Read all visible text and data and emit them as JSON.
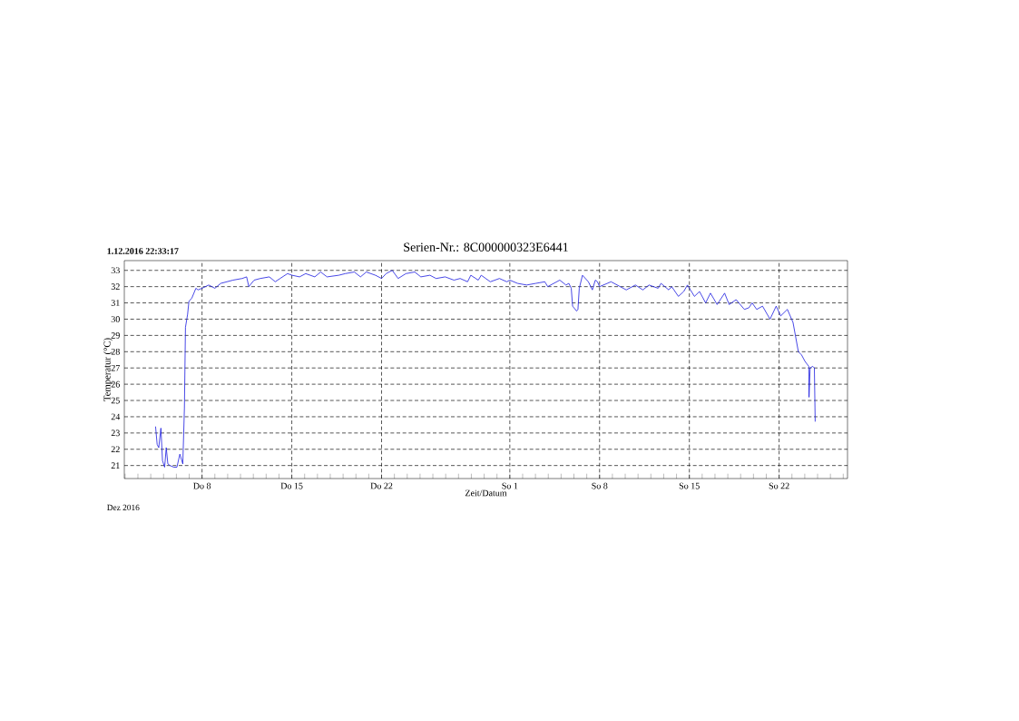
{
  "chart_data": {
    "type": "line",
    "title": "Serien-Nr.: 8C000000323E6441",
    "annotations": [
      "1.12.2016 22:33:17",
      "Dez 2016"
    ],
    "xlabel": "Zeit/Datum",
    "ylabel": "Temperatur (°C)",
    "color": "#1a1ae0",
    "grid": true,
    "xlim": [
      "2016-12-01T22:33",
      "2017-01-27T08:00"
    ],
    "ylim": [
      20.2,
      33.6
    ],
    "yticks": [
      21,
      22,
      23,
      24,
      25,
      26,
      27,
      28,
      29,
      30,
      31,
      32,
      33
    ],
    "xticks": [
      {
        "value": "2016-12-02",
        "label": null
      },
      {
        "value": "2016-12-03",
        "label": null
      },
      {
        "value": "2016-12-04",
        "label": null
      },
      {
        "value": "2016-12-05",
        "label": null
      },
      {
        "value": "2016-12-06",
        "label": null
      },
      {
        "value": "2016-12-07",
        "label": null
      },
      {
        "value": "2016-12-08",
        "label": "Do 8"
      },
      {
        "value": "2016-12-09",
        "label": null
      },
      {
        "value": "2016-12-10",
        "label": null
      },
      {
        "value": "2016-12-11",
        "label": null
      },
      {
        "value": "2016-12-12",
        "label": null
      },
      {
        "value": "2016-12-13",
        "label": null
      },
      {
        "value": "2016-12-14",
        "label": null
      },
      {
        "value": "2016-12-15",
        "label": "Do 15"
      },
      {
        "value": "2016-12-16",
        "label": null
      },
      {
        "value": "2016-12-17",
        "label": null
      },
      {
        "value": "2016-12-18",
        "label": null
      },
      {
        "value": "2016-12-19",
        "label": null
      },
      {
        "value": "2016-12-20",
        "label": null
      },
      {
        "value": "2016-12-21",
        "label": null
      },
      {
        "value": "2016-12-22",
        "label": "Do 22"
      },
      {
        "value": "2016-12-23",
        "label": null
      },
      {
        "value": "2016-12-24",
        "label": null
      },
      {
        "value": "2016-12-25",
        "label": null
      },
      {
        "value": "2016-12-26",
        "label": null
      },
      {
        "value": "2016-12-27",
        "label": null
      },
      {
        "value": "2016-12-28",
        "label": null
      },
      {
        "value": "2016-12-29",
        "label": null
      },
      {
        "value": "2016-12-30",
        "label": null
      },
      {
        "value": "2016-12-31",
        "label": null
      },
      {
        "value": "2017-01-01",
        "label": "So 1"
      },
      {
        "value": "2017-01-02",
        "label": null
      },
      {
        "value": "2017-01-03",
        "label": null
      },
      {
        "value": "2017-01-04",
        "label": null
      },
      {
        "value": "2017-01-05",
        "label": null
      },
      {
        "value": "2017-01-06",
        "label": null
      },
      {
        "value": "2017-01-07",
        "label": null
      },
      {
        "value": "2017-01-08",
        "label": "So 8"
      },
      {
        "value": "2017-01-09",
        "label": null
      },
      {
        "value": "2017-01-10",
        "label": null
      },
      {
        "value": "2017-01-11",
        "label": null
      },
      {
        "value": "2017-01-12",
        "label": null
      },
      {
        "value": "2017-01-13",
        "label": null
      },
      {
        "value": "2017-01-14",
        "label": null
      },
      {
        "value": "2017-01-15",
        "label": "So 15"
      },
      {
        "value": "2017-01-16",
        "label": null
      },
      {
        "value": "2017-01-17",
        "label": null
      },
      {
        "value": "2017-01-18",
        "label": null
      },
      {
        "value": "2017-01-19",
        "label": null
      },
      {
        "value": "2017-01-20",
        "label": null
      },
      {
        "value": "2017-01-21",
        "label": null
      },
      {
        "value": "2017-01-22",
        "label": "So 22"
      },
      {
        "value": "2017-01-23",
        "label": null
      },
      {
        "value": "2017-01-24",
        "label": null
      },
      {
        "value": "2017-01-25",
        "label": null
      },
      {
        "value": "2017-01-26",
        "label": null
      },
      {
        "value": "2017-01-27",
        "label": null
      }
    ],
    "x": [
      "2016-12-04T09:00",
      "2016-12-04T12:00",
      "2016-12-04T15:00",
      "2016-12-04T19:00",
      "2016-12-04T22:00",
      "2016-12-05T02:00",
      "2016-12-05T05:00",
      "2016-12-05T08:00",
      "2016-12-05T12:00",
      "2016-12-05T19:00",
      "2016-12-06T01:00",
      "2016-12-06T06:30",
      "2016-12-06T12:00",
      "2016-12-06T15:00",
      "2016-12-06T17:00",
      "2016-12-06T21:00",
      "2016-12-06T23:30",
      "2016-12-07T05:00",
      "2016-12-07T12:30",
      "2016-12-07T16:30",
      "2016-12-08T00:00",
      "2016-12-08T12:30",
      "2016-12-09T00:00",
      "2016-12-09T11:00",
      "2016-12-09T22:30",
      "2016-12-10T10:00",
      "2016-12-11T03:00",
      "2016-12-11T11:30",
      "2016-12-11T15:30",
      "2016-12-12T01:30",
      "2016-12-12T13:00",
      "2016-12-13T06:00",
      "2016-12-13T17:00",
      "2016-12-14T02:00",
      "2016-12-14T16:00",
      "2016-12-15T00:30",
      "2016-12-15T14:30",
      "2016-12-16T02:00",
      "2016-12-16T19:00",
      "2016-12-17T06:00",
      "2016-12-17T18:00",
      "2016-12-18T16:00",
      "2016-12-19T04:00",
      "2016-12-19T21:00",
      "2016-12-20T08:30",
      "2016-12-20T19:30",
      "2016-12-21T12:30",
      "2016-12-22T00:00",
      "2016-12-22T08:30",
      "2016-12-22T20:00",
      "2016-12-23T07:00",
      "2016-12-23T21:30",
      "2016-12-24T14:00",
      "2016-12-25T01:30",
      "2016-12-25T18:30",
      "2016-12-26T06:00",
      "2016-12-26T23:00",
      "2016-12-27T15:30",
      "2016-12-28T03:00",
      "2016-12-28T17:00",
      "2016-12-28T23:00",
      "2016-12-29T13:00",
      "2016-12-29T18:30",
      "2016-12-30T11:30",
      "2016-12-31T04:30",
      "2016-12-31T18:30",
      "2017-01-01T00:00",
      "2017-01-01T14:30",
      "2017-01-02T07:30",
      "2017-01-03T00:30",
      "2017-01-03T17:30",
      "2017-01-03T23:00",
      "2017-01-04T21:30",
      "2017-01-05T09:00",
      "2017-01-05T14:30",
      "2017-01-05T19:00",
      "2017-01-05T21:30",
      "2017-01-06T05:00",
      "2017-01-06T07:30",
      "2017-01-06T10:00",
      "2017-01-06T16:00",
      "2017-01-07T03:00",
      "2017-01-07T10:30",
      "2017-01-07T16:00",
      "2017-01-07T20:00",
      "2017-01-08T00:00",
      "2017-01-08T21:30",
      "2017-01-09T14:30",
      "2017-01-10T02:00",
      "2017-01-10T19:00",
      "2017-01-11T09:00",
      "2017-01-11T20:30",
      "2017-01-12T13:30",
      "2017-01-12T19:00",
      "2017-01-13T09:30",
      "2017-01-13T15:00",
      "2017-01-14T03:30",
      "2017-01-14T13:30",
      "2017-01-14T20:30",
      "2017-01-15T02:00",
      "2017-01-15T09:30",
      "2017-01-15T19:00",
      "2017-01-16T06:30",
      "2017-01-16T15:30",
      "2017-01-17T04:00",
      "2017-01-17T18:00",
      "2017-01-18T02:30",
      "2017-01-18T15:30",
      "2017-01-19T07:00",
      "2017-01-19T15:30",
      "2017-01-19T21:30",
      "2017-01-20T06:00",
      "2017-01-20T17:00",
      "2017-01-21T07:00",
      "2017-01-21T18:30",
      "2017-01-22T03:00",
      "2017-01-22T15:30",
      "2017-01-23T02:00",
      "2017-01-23T12:00",
      "2017-01-23T18:00",
      "2017-01-24T00:30",
      "2017-01-24T07:30",
      "2017-01-24T08:00",
      "2017-01-24T10:00",
      "2017-01-24T15:00",
      "2017-01-24T18:00",
      "2017-01-24T19:30"
    ],
    "values": [
      23.4,
      22.3,
      22.1,
      23.3,
      21.3,
      20.9,
      22.1,
      21.1,
      21.0,
      20.9,
      20.9,
      21.7,
      21.1,
      24.5,
      29.5,
      30.3,
      31.1,
      31.3,
      31.9,
      31.8,
      31.9,
      32.1,
      31.9,
      32.2,
      32.3,
      32.4,
      32.5,
      32.6,
      32.0,
      32.4,
      32.5,
      32.6,
      32.3,
      32.5,
      32.8,
      32.7,
      32.6,
      32.8,
      32.6,
      32.9,
      32.6,
      32.7,
      32.8,
      32.9,
      32.6,
      32.9,
      32.7,
      32.5,
      32.8,
      33.0,
      32.5,
      32.8,
      32.9,
      32.6,
      32.7,
      32.5,
      32.6,
      32.4,
      32.5,
      32.3,
      32.7,
      32.4,
      32.7,
      32.3,
      32.5,
      32.3,
      32.4,
      32.2,
      32.1,
      32.2,
      32.3,
      32.0,
      32.4,
      32.1,
      32.2,
      31.9,
      30.8,
      30.5,
      30.6,
      31.9,
      32.7,
      32.3,
      31.8,
      32.4,
      32.3,
      32.0,
      32.3,
      32.0,
      31.8,
      32.1,
      31.8,
      32.1,
      31.9,
      32.2,
      31.8,
      32.0,
      31.4,
      31.7,
      32.1,
      31.8,
      31.4,
      31.7,
      31.0,
      31.6,
      30.9,
      31.6,
      30.9,
      31.2,
      30.6,
      30.7,
      31.0,
      30.6,
      30.8,
      30.0,
      30.8,
      30.2,
      30.6,
      29.8,
      28.0,
      27.8,
      27.4,
      27.1,
      25.2,
      27.0,
      27.1,
      27.0,
      23.7
    ]
  }
}
